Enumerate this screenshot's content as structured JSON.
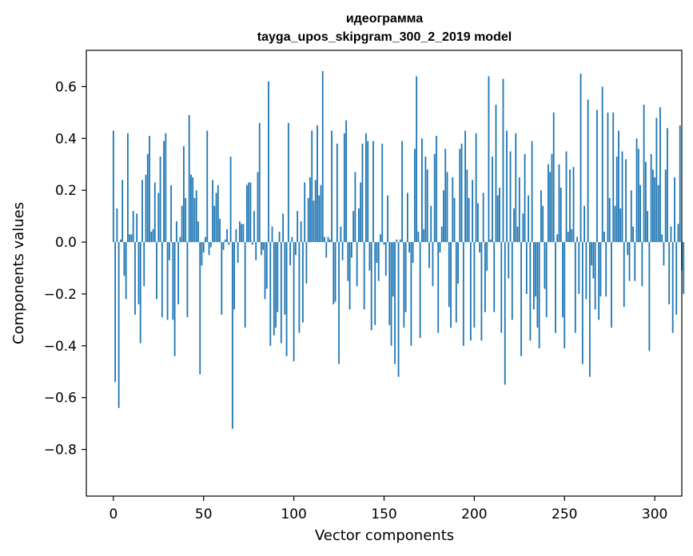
{
  "chart_data": {
    "type": "bar",
    "title": "идеограмма",
    "subtitle": "tayga_upos_skipgram_300_2_2019 model",
    "xlabel": "Vector components",
    "ylabel": "Components values",
    "xlim": [
      -15,
      315
    ],
    "ylim": [
      -0.98,
      0.74
    ],
    "xticks": [
      0,
      50,
      100,
      150,
      200,
      250,
      300
    ],
    "xtick_labels": [
      "0",
      "50",
      "100",
      "150",
      "200",
      "250",
      "300"
    ],
    "yticks": [
      -0.8,
      -0.6,
      -0.4,
      -0.2,
      0.0,
      0.2,
      0.4,
      0.6
    ],
    "ytick_labels": [
      "−0.8",
      "−0.6",
      "−0.4",
      "−0.2",
      "0.0",
      "0.2",
      "0.4",
      "0.6"
    ],
    "bar_color": "#1f77b4",
    "grid": false,
    "series": [
      {
        "name": "идеограмма",
        "values": [
          0.43,
          -0.54,
          0.13,
          -0.64,
          0.01,
          0.24,
          -0.13,
          -0.22,
          0.42,
          0.03,
          0.03,
          0.12,
          -0.28,
          0.11,
          -0.24,
          -0.39,
          0.24,
          -0.17,
          0.26,
          0.34,
          0.41,
          0.04,
          0.05,
          0.23,
          -0.22,
          0.19,
          0.33,
          -0.29,
          0.39,
          0.42,
          -0.3,
          -0.07,
          0.22,
          -0.3,
          -0.44,
          0.08,
          -0.24,
          0.02,
          0.14,
          0.37,
          0.17,
          -0.29,
          0.49,
          0.26,
          0.25,
          0.17,
          0.2,
          0.08,
          -0.51,
          -0.09,
          -0.04,
          0.02,
          0.43,
          -0.05,
          -0.02,
          0.24,
          0.14,
          0.19,
          0.22,
          0.09,
          -0.28,
          -0.03,
          0.01,
          0.05,
          -0.01,
          0.33,
          -0.72,
          -0.26,
          0.05,
          -0.08,
          0.08,
          0.07,
          0.07,
          -0.33,
          0.22,
          0.23,
          0.23,
          -0.01,
          0.12,
          -0.07,
          0.27,
          0.46,
          -0.05,
          -0.03,
          -0.22,
          -0.18,
          0.62,
          -0.4,
          0.06,
          -0.36,
          -0.33,
          -0.27,
          0.04,
          -0.39,
          0.11,
          -0.28,
          -0.44,
          0.46,
          -0.09,
          0.02,
          -0.46,
          -0.05,
          0.12,
          -0.35,
          0.08,
          -0.31,
          0.23,
          -0.16,
          0.17,
          0.25,
          0.43,
          0.16,
          0.24,
          0.45,
          0.18,
          0.22,
          0.66,
          0.02,
          -0.06,
          0.02,
          0.01,
          0.43,
          -0.24,
          -0.23,
          0.38,
          -0.47,
          0.06,
          -0.07,
          0.42,
          0.47,
          -0.15,
          -0.26,
          -0.06,
          0.12,
          0.27,
          -0.17,
          0.13,
          0.23,
          0.38,
          -0.26,
          0.42,
          0.39,
          -0.11,
          -0.34,
          0.39,
          -0.32,
          -0.08,
          -0.15,
          0.03,
          0.38,
          -0.01,
          -0.13,
          0.18,
          -0.32,
          -0.4,
          -0.21,
          -0.47,
          0.01,
          -0.52,
          0.01,
          0.39,
          -0.33,
          -0.27,
          0.19,
          -0.04,
          -0.4,
          -0.08,
          0.36,
          0.64,
          0.04,
          -0.37,
          0.4,
          0.05,
          0.33,
          0.28,
          -0.1,
          0.14,
          -0.17,
          0.34,
          0.41,
          -0.35,
          -0.04,
          0.06,
          0.2,
          0.36,
          0.27,
          -0.25,
          -0.33,
          0.25,
          0.17,
          -0.31,
          -0.16,
          0.36,
          0.38,
          -0.4,
          0.43,
          0.28,
          0.17,
          -0.38,
          0.24,
          -0.33,
          0.42,
          0.15,
          -0.04,
          -0.38,
          0.19,
          -0.27,
          -0.11,
          0.64,
          0.01,
          0.33,
          -0.27,
          0.53,
          0.18,
          0.21,
          -0.35,
          0.63,
          -0.55,
          0.43,
          -0.14,
          0.35,
          -0.3,
          0.13,
          0.42,
          0.06,
          0.25,
          -0.44,
          0.11,
          0.34,
          -0.2,
          0.18,
          -0.38,
          0.39,
          -0.26,
          -0.21,
          -0.33,
          -0.41,
          0.2,
          0.14,
          -0.18,
          -0.29,
          0.3,
          0.27,
          0.34,
          0.5,
          -0.35,
          0.03,
          0.3,
          0.21,
          -0.29,
          -0.41,
          0.35,
          0.04,
          0.28,
          0.05,
          0.29,
          -0.35,
          0.02,
          -0.2,
          0.65,
          -0.47,
          0.14,
          -0.22,
          0.55,
          -0.52,
          -0.09,
          -0.14,
          -0.26,
          0.51,
          -0.3,
          -0.21,
          0.6,
          0.04,
          -0.21,
          0.5,
          0.17,
          -0.33,
          0.5,
          0.14,
          0.33,
          0.43,
          0.13,
          0.35,
          -0.25,
          0.32,
          -0.05,
          -0.15,
          0.2,
          0.06,
          -0.15,
          0.4,
          0.36,
          0.22,
          -0.17,
          0.53,
          0.31,
          0.12,
          -0.42,
          0.34,
          0.28,
          0.25,
          0.48,
          0.22,
          0.52,
          0.03,
          -0.09,
          0.28,
          0.44,
          -0.24,
          0.06,
          -0.35,
          0.25,
          -0.28,
          0.07,
          0.45,
          -0.11,
          -0.2
        ]
      }
    ]
  }
}
